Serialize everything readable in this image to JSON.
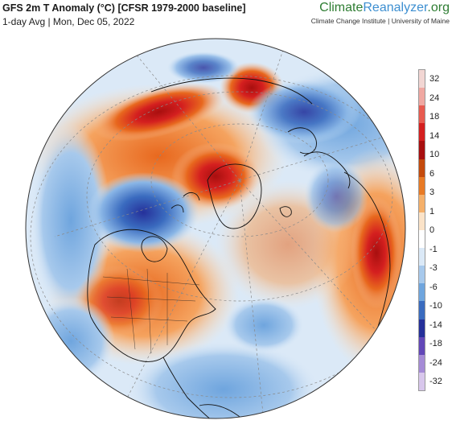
{
  "header": {
    "title": "GFS 2m T Anomaly (°C) [CFSR 1979-2000 baseline]",
    "subtitle": "1-day Avg | Mon, Dec 05, 2022"
  },
  "brand": {
    "name_part1": "Climate",
    "name_part2": "Reanalyzer",
    "name_part3": ".org",
    "affiliation": "Climate Change Institute | University of Maine"
  },
  "map": {
    "projection": "orthographic",
    "center": "North Atlantic / Arctic",
    "colors": {
      "ocean_background": "#dfeaf7",
      "warm_strong": "#b30000",
      "warm_mid": "#e8681e",
      "warm_light": "#f7c29a",
      "neutral": "#ffffff",
      "cool_light": "#c7def4",
      "cool_mid": "#5a8fd6",
      "cool_strong": "#23308c",
      "land_outline": "#111111"
    }
  },
  "legend": {
    "ticks": [
      "32",
      "24",
      "18",
      "14",
      "10",
      "6",
      "3",
      "1",
      "0",
      "-1",
      "-3",
      "-6",
      "-10",
      "-14",
      "-18",
      "-24",
      "-32"
    ],
    "colors": [
      "#f2d6d3",
      "#f0a8a2",
      "#e85b50",
      "#d41f1f",
      "#a80f0f",
      "#c44a0c",
      "#e87a25",
      "#f5b06a",
      "#fbe3c8",
      "#ffffff",
      "#dbe9f7",
      "#a7c9ec",
      "#6fa5de",
      "#3a6bbf",
      "#25309a",
      "#6247b8",
      "#a58bd6",
      "#d8c7ec"
    ]
  }
}
